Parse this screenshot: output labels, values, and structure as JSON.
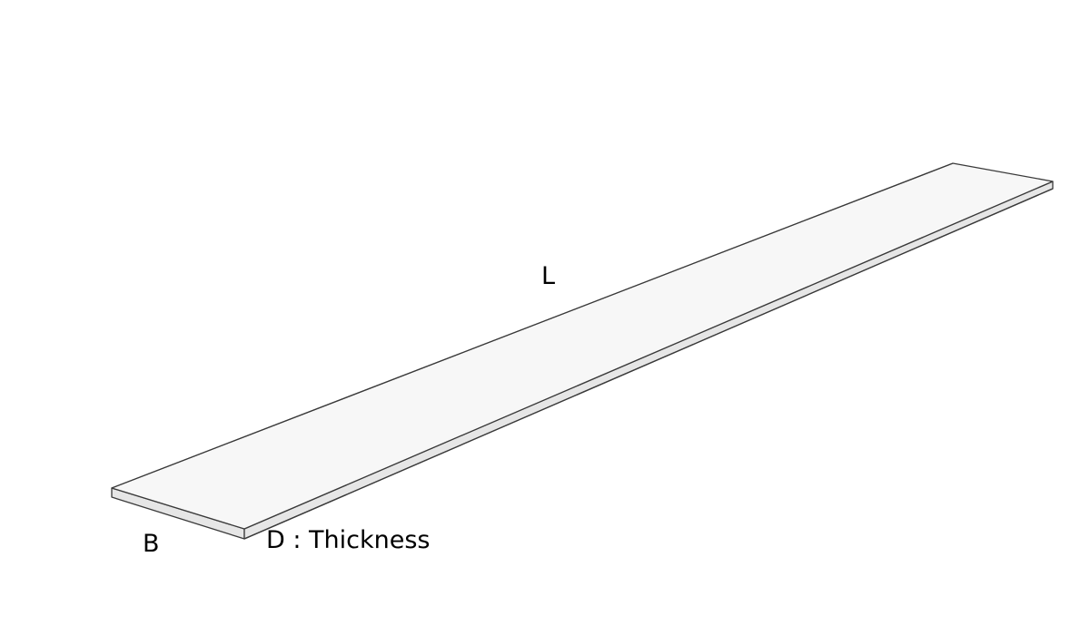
{
  "diagram": {
    "labels": {
      "length": "L",
      "width": "B",
      "thickness": "D : Thickness"
    },
    "colors": {
      "background": "#ffffff",
      "top_face": "#f7f7f7",
      "side_face": "#e6e6e6",
      "edge": "#3a3a3a",
      "text": "#000000"
    }
  }
}
